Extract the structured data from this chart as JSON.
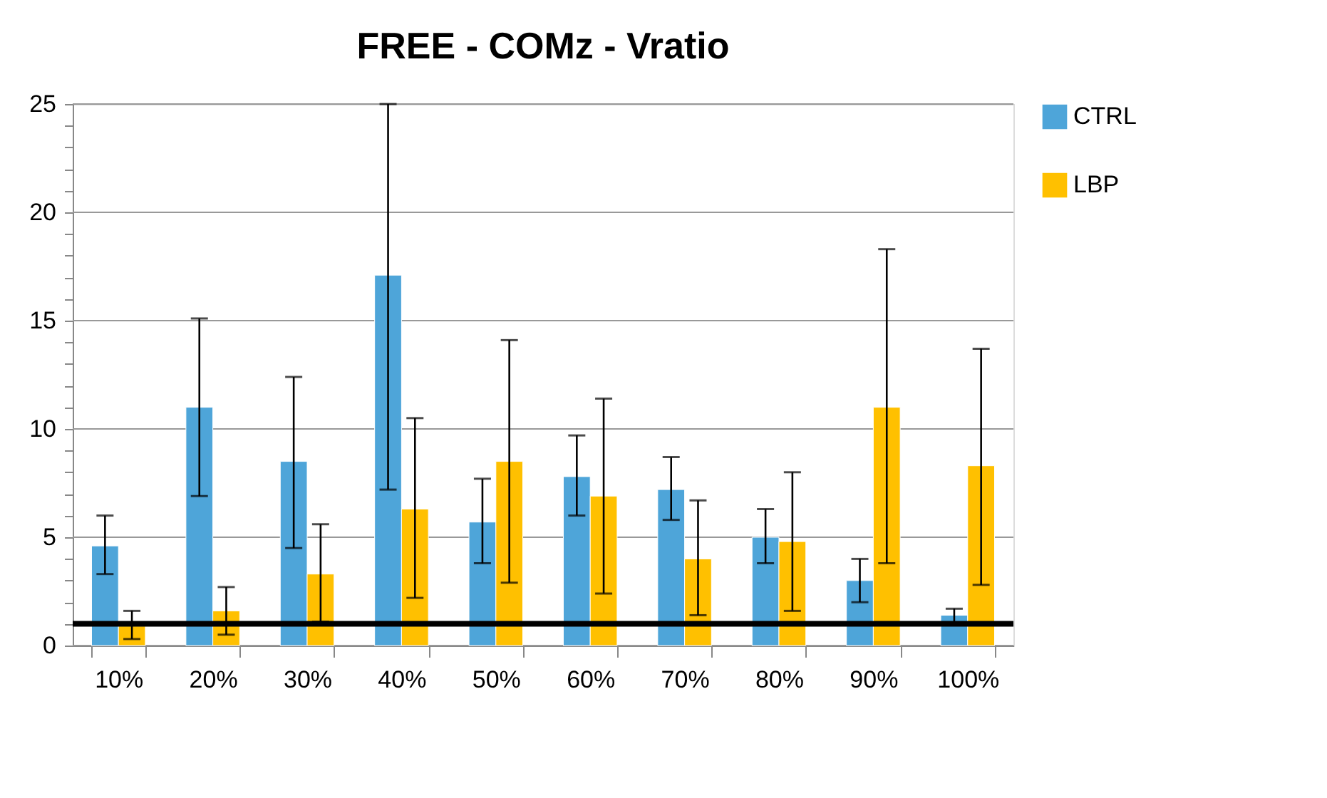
{
  "chart_data": {
    "type": "bar",
    "title": "FREE - COMz - Vratio",
    "categories": [
      "10%",
      "20%",
      "30%",
      "40%",
      "50%",
      "60%",
      "70%",
      "80%",
      "90%",
      "100%"
    ],
    "series": [
      {
        "name": "CTRL",
        "color": "#4ea5d9",
        "values": [
          4.6,
          11.0,
          8.5,
          17.1,
          5.7,
          7.8,
          7.2,
          5.0,
          3.0,
          1.4
        ],
        "errors": [
          [
            3.3,
            6.0
          ],
          [
            6.9,
            15.1
          ],
          [
            4.5,
            12.4
          ],
          [
            7.2,
            25
          ],
          [
            3.8,
            7.7
          ],
          [
            6.0,
            9.7
          ],
          [
            5.8,
            8.7
          ],
          [
            3.8,
            6.3
          ],
          [
            2.0,
            4.0
          ],
          [
            1.0,
            1.7
          ]
        ]
      },
      {
        "name": "LBP",
        "color": "#ffc000",
        "values": [
          0.9,
          1.6,
          3.3,
          6.3,
          8.5,
          6.9,
          4.0,
          4.8,
          11.0,
          8.3
        ],
        "errors": [
          [
            0.3,
            1.6
          ],
          [
            0.5,
            2.7
          ],
          [
            1.1,
            5.6
          ],
          [
            2.2,
            10.5
          ],
          [
            2.9,
            14.1
          ],
          [
            2.4,
            11.4
          ],
          [
            1.4,
            6.7
          ],
          [
            1.6,
            8.0
          ],
          [
            3.8,
            18.3
          ],
          [
            2.8,
            13.7
          ]
        ]
      }
    ],
    "ylim": [
      0,
      25
    ],
    "yticks": [
      0,
      {
        "value": 1,
        "label": null
      },
      {
        "value": 2,
        "label": null
      },
      {
        "value": 3,
        "label": null
      },
      {
        "value": 4,
        "label": null
      },
      5,
      {
        "value": 6,
        "label": null
      },
      {
        "value": 7,
        "label": null
      },
      {
        "value": 8,
        "label": null
      },
      {
        "value": 9,
        "label": null
      },
      10,
      {
        "value": 11,
        "label": null
      },
      {
        "value": 12,
        "label": null
      },
      {
        "value": 13,
        "label": null
      },
      {
        "value": 14,
        "label": null
      },
      15,
      {
        "value": 16,
        "label": null
      },
      {
        "value": 17,
        "label": null
      },
      {
        "value": 18,
        "label": null
      },
      {
        "value": 19,
        "label": null
      },
      20,
      {
        "value": 21,
        "label": null
      },
      {
        "value": 22,
        "label": null
      },
      {
        "value": 23,
        "label": null
      },
      {
        "value": 24,
        "label": null
      },
      25
    ],
    "grid": "y",
    "legend": "right",
    "ref_lines": [
      {
        "axis": "y",
        "value": 1,
        "color": "#000000",
        "line_style": "solid"
      }
    ]
  }
}
